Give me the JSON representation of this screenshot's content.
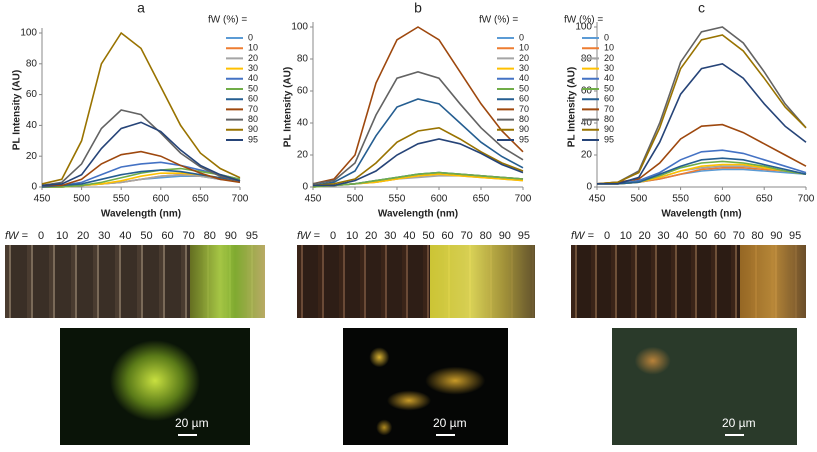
{
  "chart_data": [
    {
      "type": "line",
      "panel_label": "a",
      "legend_title": "fW  (%) =",
      "xlabel": "Wavelength (nm)",
      "ylabel": "PL Intensity (AU)",
      "x": [
        450,
        475,
        500,
        525,
        550,
        575,
        600,
        625,
        650,
        675,
        700
      ],
      "xlim": [
        450,
        700
      ],
      "xticks": [
        450,
        500,
        550,
        600,
        650,
        700
      ],
      "ylim": [
        0,
        100
      ],
      "yticks": [
        0,
        20,
        40,
        60,
        80,
        100
      ],
      "series": [
        {
          "name": "0",
          "color": "#5b9bd5",
          "values": [
            0,
            0,
            1,
            2,
            3,
            5,
            6,
            7,
            7,
            5,
            4
          ]
        },
        {
          "name": "10",
          "color": "#ed7d31",
          "values": [
            0,
            0,
            1,
            2,
            3,
            5,
            7,
            8,
            7,
            6,
            4
          ]
        },
        {
          "name": "20",
          "color": "#a5a5a5",
          "values": [
            0,
            0,
            1,
            2,
            3,
            5,
            7,
            8,
            7,
            5,
            4
          ]
        },
        {
          "name": "30",
          "color": "#ffc000",
          "values": [
            0,
            0,
            1,
            2,
            4,
            7,
            9,
            9,
            8,
            6,
            4
          ]
        },
        {
          "name": "40",
          "color": "#4472c4",
          "values": [
            1,
            1,
            3,
            8,
            13,
            15,
            16,
            14,
            11,
            8,
            5
          ]
        },
        {
          "name": "50",
          "color": "#70ad47",
          "values": [
            0,
            0,
            1,
            3,
            6,
            9,
            11,
            12,
            10,
            8,
            5
          ]
        },
        {
          "name": "60",
          "color": "#255e91",
          "values": [
            0,
            1,
            2,
            5,
            8,
            10,
            11,
            10,
            8,
            6,
            4
          ]
        },
        {
          "name": "70",
          "color": "#9e480e",
          "values": [
            1,
            1,
            5,
            15,
            21,
            23,
            20,
            14,
            9,
            5,
            3
          ]
        },
        {
          "name": "80",
          "color": "#636363",
          "values": [
            1,
            3,
            15,
            38,
            50,
            47,
            35,
            22,
            13,
            7,
            4
          ]
        },
        {
          "name": "90",
          "color": "#997300",
          "values": [
            2,
            5,
            30,
            80,
            100,
            90,
            65,
            40,
            22,
            12,
            6
          ]
        },
        {
          "name": "95",
          "color": "#264478",
          "values": [
            1,
            2,
            8,
            25,
            38,
            42,
            36,
            24,
            14,
            8,
            4
          ]
        }
      ]
    },
    {
      "type": "line",
      "panel_label": "b",
      "legend_title": "fW  (%) =",
      "xlabel": "Wavelength (nm)",
      "ylabel": "PL Intensity (AU)",
      "x": [
        450,
        475,
        500,
        525,
        550,
        575,
        600,
        625,
        650,
        675,
        700
      ],
      "xlim": [
        450,
        700
      ],
      "xticks": [
        450,
        500,
        550,
        600,
        650,
        700
      ],
      "ylim": [
        0,
        100
      ],
      "yticks": [
        0,
        20,
        40,
        60,
        80,
        100
      ],
      "series": [
        {
          "name": "0",
          "color": "#5b9bd5",
          "values": [
            0,
            1,
            2,
            4,
            6,
            8,
            9,
            8,
            7,
            6,
            5
          ]
        },
        {
          "name": "10",
          "color": "#ed7d31",
          "values": [
            0,
            1,
            2,
            3,
            5,
            7,
            8,
            8,
            7,
            6,
            5
          ]
        },
        {
          "name": "20",
          "color": "#a5a5a5",
          "values": [
            0,
            1,
            2,
            3,
            5,
            6,
            7,
            7,
            6,
            5,
            4
          ]
        },
        {
          "name": "30",
          "color": "#ffc000",
          "values": [
            0,
            1,
            2,
            3,
            5,
            7,
            8,
            7,
            6,
            5,
            4
          ]
        },
        {
          "name": "40",
          "color": "#4472c4",
          "values": [
            1,
            1,
            2,
            4,
            6,
            8,
            9,
            8,
            7,
            6,
            5
          ]
        },
        {
          "name": "50",
          "color": "#70ad47",
          "values": [
            0,
            1,
            2,
            4,
            6,
            8,
            9,
            8,
            7,
            6,
            5
          ]
        },
        {
          "name": "60",
          "color": "#255e91",
          "values": [
            1,
            3,
            10,
            32,
            50,
            55,
            52,
            40,
            28,
            19,
            12
          ]
        },
        {
          "name": "70",
          "color": "#9e480e",
          "values": [
            2,
            5,
            20,
            65,
            92,
            100,
            92,
            72,
            52,
            35,
            22
          ]
        },
        {
          "name": "80",
          "color": "#636363",
          "values": [
            2,
            4,
            15,
            45,
            68,
            72,
            68,
            52,
            37,
            25,
            17
          ]
        },
        {
          "name": "90",
          "color": "#997300",
          "values": [
            1,
            2,
            5,
            15,
            28,
            35,
            37,
            30,
            22,
            15,
            10
          ]
        },
        {
          "name": "95",
          "color": "#264478",
          "values": [
            1,
            1,
            4,
            10,
            20,
            27,
            30,
            27,
            21,
            14,
            9
          ]
        }
      ]
    },
    {
      "type": "line",
      "panel_label": "c",
      "legend_title": "fW  (%) =",
      "xlabel": "Wavelength (nm)",
      "ylabel": "PL Intensity (AU)",
      "x": [
        450,
        475,
        500,
        525,
        550,
        575,
        600,
        625,
        650,
        675,
        700
      ],
      "xlim": [
        450,
        700
      ],
      "xticks": [
        450,
        500,
        550,
        600,
        650,
        700
      ],
      "ylim": [
        0,
        100
      ],
      "yticks": [
        0,
        20,
        40,
        60,
        80,
        100
      ],
      "series": [
        {
          "name": "0",
          "color": "#5b9bd5",
          "values": [
            2,
            2,
            3,
            5,
            8,
            10,
            11,
            11,
            10,
            9,
            8
          ]
        },
        {
          "name": "10",
          "color": "#ed7d31",
          "values": [
            2,
            2,
            3,
            5,
            8,
            11,
            12,
            12,
            11,
            10,
            8
          ]
        },
        {
          "name": "20",
          "color": "#a5a5a5",
          "values": [
            2,
            2,
            3,
            6,
            10,
            12,
            13,
            13,
            12,
            10,
            8
          ]
        },
        {
          "name": "30",
          "color": "#ffc000",
          "values": [
            2,
            2,
            3,
            6,
            10,
            13,
            14,
            14,
            12,
            10,
            8
          ]
        },
        {
          "name": "40",
          "color": "#4472c4",
          "values": [
            2,
            2,
            4,
            9,
            17,
            22,
            23,
            21,
            17,
            13,
            9
          ]
        },
        {
          "name": "50",
          "color": "#70ad47",
          "values": [
            2,
            2,
            3,
            7,
            12,
            15,
            16,
            15,
            13,
            10,
            8
          ]
        },
        {
          "name": "60",
          "color": "#255e91",
          "values": [
            2,
            2,
            3,
            8,
            13,
            17,
            18,
            17,
            14,
            11,
            8
          ]
        },
        {
          "name": "70",
          "color": "#9e480e",
          "values": [
            2,
            3,
            5,
            15,
            30,
            38,
            39,
            34,
            27,
            20,
            13
          ]
        },
        {
          "name": "80",
          "color": "#636363",
          "values": [
            2,
            3,
            10,
            40,
            78,
            97,
            100,
            90,
            72,
            52,
            37
          ]
        },
        {
          "name": "90",
          "color": "#997300",
          "values": [
            2,
            3,
            9,
            37,
            74,
            92,
            95,
            85,
            68,
            50,
            37
          ]
        },
        {
          "name": "95",
          "color": "#264478",
          "values": [
            2,
            2,
            6,
            28,
            58,
            74,
            77,
            68,
            52,
            38,
            28
          ]
        }
      ]
    }
  ],
  "panels": [
    {
      "strip_label": "fW =",
      "strip_values": [
        0,
        10,
        20,
        30,
        40,
        50,
        60,
        70,
        80,
        90,
        95
      ],
      "scale_bar": "20 µm"
    },
    {
      "strip_label": "fW =",
      "strip_values": [
        0,
        10,
        20,
        30,
        40,
        50,
        60,
        70,
        80,
        90,
        95
      ],
      "scale_bar": "20 µm"
    },
    {
      "strip_label": "fW =",
      "strip_values": [
        0,
        10,
        20,
        30,
        40,
        50,
        60,
        70,
        80,
        90,
        95
      ],
      "scale_bar": "20 µm"
    }
  ]
}
